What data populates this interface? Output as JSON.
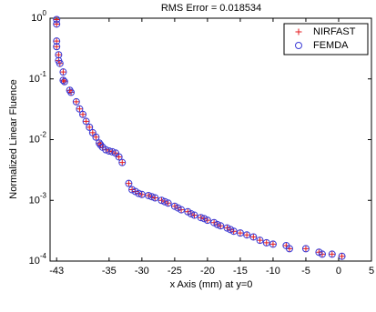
{
  "chart_data": {
    "type": "scatter",
    "title": "RMS Error = 0.018534",
    "x_label": "x Axis (mm) at y=0",
    "y_label": "Normalized Linear Fluence",
    "y_scale": "log",
    "grid": false,
    "legend": "top-right",
    "xlim": [
      -44,
      5
    ],
    "xticks": [
      -43,
      -35,
      -30,
      -25,
      -20,
      -15,
      -10,
      -5,
      0,
      5
    ],
    "ylim": [
      0.0001,
      1
    ],
    "yticks": [
      {
        "value": 0.0001,
        "label": "10",
        "exponent": "-4"
      },
      {
        "value": 0.001,
        "label": "10",
        "exponent": "-3"
      },
      {
        "value": 0.01,
        "label": "10",
        "exponent": "-2"
      },
      {
        "value": 0.1,
        "label": "10",
        "exponent": "-1"
      },
      {
        "value": 1,
        "label": "10",
        "exponent": "0"
      }
    ],
    "x": [
      -43,
      -43,
      -43,
      -43,
      -42.7,
      -42.7,
      -42.5,
      -42,
      -42,
      -41.8,
      -41,
      -40.8,
      -40,
      -39.5,
      -39,
      -38.5,
      -38,
      -37.5,
      -37,
      -36.5,
      -36.3,
      -36,
      -35.5,
      -35,
      -34.5,
      -34,
      -33.5,
      -33,
      -32,
      -31.5,
      -31,
      -30.5,
      -30,
      -29,
      -28.5,
      -28,
      -27,
      -26.5,
      -26,
      -25,
      -24.5,
      -24,
      -23,
      -22.5,
      -22,
      -21,
      -20.5,
      -20,
      -19,
      -18.5,
      -18,
      -17,
      -16.5,
      -16,
      -15,
      -14,
      -13,
      -12,
      -11,
      -10,
      -8,
      -7.5,
      -5,
      -3,
      -2.5,
      -1,
      0.5
    ],
    "series": [
      {
        "name": "NIRFAST",
        "color": "#e41a1c",
        "marker": "plus",
        "values": [
          0.95,
          0.8,
          0.42,
          0.34,
          0.25,
          0.2,
          0.18,
          0.13,
          0.095,
          0.09,
          0.065,
          0.06,
          0.042,
          0.032,
          0.026,
          0.02,
          0.016,
          0.013,
          0.011,
          0.0088,
          0.0082,
          0.0075,
          0.0068,
          0.0065,
          0.0063,
          0.006,
          0.0052,
          0.0042,
          0.0019,
          0.0015,
          0.0014,
          0.0013,
          0.00125,
          0.0012,
          0.00115,
          0.0011,
          0.001,
          0.00095,
          0.0009,
          0.0008,
          0.00075,
          0.0007,
          0.00065,
          0.0006,
          0.00057,
          0.00052,
          0.0005,
          0.00047,
          0.00043,
          0.0004,
          0.00038,
          0.00035,
          0.00033,
          0.00031,
          0.00029,
          0.00027,
          0.00025,
          0.00022,
          0.0002,
          0.00019,
          0.00018,
          0.00016,
          0.00016,
          0.00014,
          0.00013,
          0.00013,
          0.00012
        ]
      },
      {
        "name": "FEMDA",
        "color": "#3b3bd6",
        "marker": "circle",
        "values": [
          0.95,
          0.8,
          0.42,
          0.34,
          0.25,
          0.2,
          0.18,
          0.13,
          0.095,
          0.09,
          0.065,
          0.06,
          0.042,
          0.032,
          0.026,
          0.02,
          0.016,
          0.013,
          0.011,
          0.0088,
          0.0082,
          0.0075,
          0.0068,
          0.0065,
          0.0063,
          0.006,
          0.0052,
          0.0042,
          0.0019,
          0.0015,
          0.0014,
          0.0013,
          0.00125,
          0.0012,
          0.00115,
          0.0011,
          0.001,
          0.00095,
          0.0009,
          0.0008,
          0.00075,
          0.0007,
          0.00065,
          0.0006,
          0.00057,
          0.00052,
          0.0005,
          0.00047,
          0.00043,
          0.0004,
          0.00038,
          0.00035,
          0.00033,
          0.00031,
          0.00029,
          0.00027,
          0.00025,
          0.00022,
          0.0002,
          0.00019,
          0.00018,
          0.00016,
          0.00016,
          0.00014,
          0.00013,
          0.00013,
          0.00012
        ]
      }
    ]
  }
}
